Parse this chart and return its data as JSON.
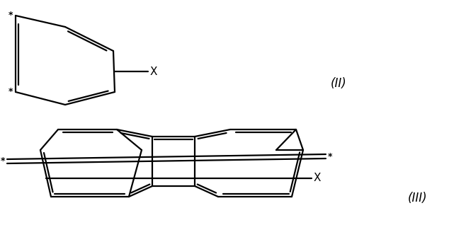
{
  "bg_color": "#ffffff",
  "figsize": [
    6.58,
    3.18
  ],
  "dpi": 100,
  "label_II": "(II)",
  "label_III": "(III)"
}
